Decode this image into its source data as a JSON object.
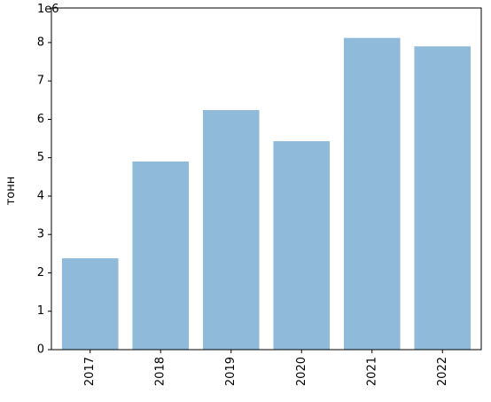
{
  "chart_data": {
    "type": "bar",
    "y_label": "тонн",
    "y_offset_label": "1e6",
    "categories": [
      "2017",
      "2018",
      "2019",
      "2020",
      "2021",
      "2022"
    ],
    "values": [
      2.38,
      4.9,
      6.24,
      5.43,
      8.12,
      7.9
    ],
    "color": "#8fbad9",
    "ylim": [
      0,
      8.9
    ],
    "yticks": [
      0,
      1,
      2,
      3,
      4,
      5,
      6,
      7,
      8
    ],
    "grid": false
  }
}
